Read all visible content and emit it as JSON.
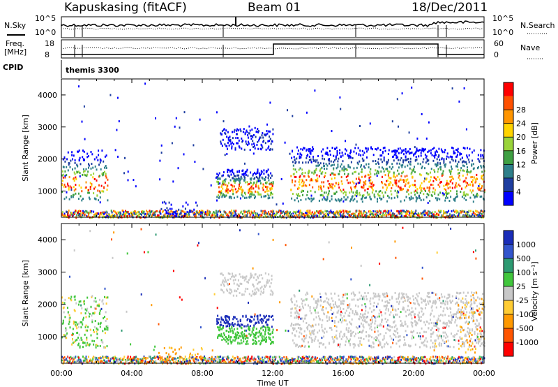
{
  "header": {
    "station": "Kapuskasing (fitACF)",
    "beam": "Beam 01",
    "date": "18/Dec/2011"
  },
  "noise_panel": {
    "left_label": "N.Sky",
    "right_label": "N.Search",
    "left_ticks": [
      "10^5",
      "10^0"
    ],
    "right_ticks": [
      "10^5",
      "10^0"
    ]
  },
  "freq_panel": {
    "left_label_1": "Freq.",
    "left_label_2": "[MHz]",
    "right_label": "Nave",
    "left_ticks": [
      "18",
      "8"
    ],
    "right_ticks": [
      "60",
      "0"
    ]
  },
  "cpid": {
    "label": "CPID",
    "value": "themis 3300"
  },
  "axes": {
    "xlabel": "Time UT",
    "ylabel": "Slant Range [km]",
    "x_ticks": [
      "00:00",
      "04:00",
      "08:00",
      "12:00",
      "16:00",
      "20:00",
      "00:00"
    ],
    "y_ticks": [
      "1000",
      "2000",
      "3000",
      "4000"
    ]
  },
  "power_colorbar": {
    "title": "Power [dB]",
    "ticks": [
      "4",
      "8",
      "12",
      "16",
      "20",
      "24",
      "28"
    ],
    "colors": [
      "#0000ff",
      "#1e3ea0",
      "#2e7f8a",
      "#3fa043",
      "#9ad43a",
      "#ffd400",
      "#ff9500",
      "#ff5000",
      "#ff0000"
    ]
  },
  "velocity_colorbar": {
    "title": "Velocity [m s⁻¹]",
    "ticks": [
      "1000",
      "500",
      "100",
      "25",
      "-25",
      "-100",
      "-500",
      "-1000"
    ],
    "colors": [
      "#1a2db8",
      "#3355cc",
      "#2d9a72",
      "#41c63c",
      "#c8c8c8",
      "#ffcc33",
      "#ff9900",
      "#ff5500",
      "#ff0000"
    ]
  },
  "chart_data": [
    {
      "type": "heatmap",
      "name": "Power",
      "x_range_hours": [
        0,
        24
      ],
      "y_range_km": [
        180,
        4500
      ],
      "colorbar_title": "Power [dB]",
      "colorbar_range": [
        0,
        32
      ]
    },
    {
      "type": "heatmap",
      "name": "Velocity",
      "x_range_hours": [
        0,
        24
      ],
      "y_range_km": [
        180,
        4500
      ],
      "colorbar_title": "Velocity [m s⁻¹]",
      "colorbar_range": [
        -1000,
        1000
      ]
    }
  ]
}
